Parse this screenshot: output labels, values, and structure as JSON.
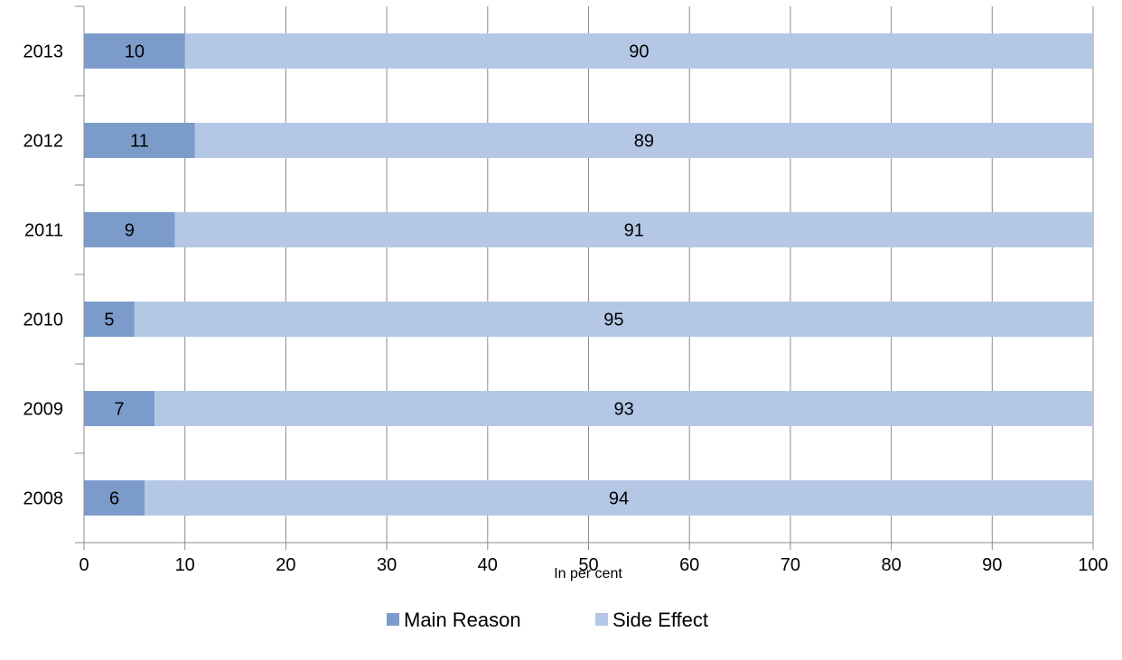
{
  "chart_data": {
    "type": "bar",
    "orientation": "horizontal",
    "stacked": true,
    "title": "",
    "categories": [
      "2013",
      "2012",
      "2011",
      "2010",
      "2009",
      "2008"
    ],
    "series": [
      {
        "name": "Main Reason",
        "color": "#7b9ccb",
        "values": [
          10,
          11,
          9,
          5,
          7,
          6
        ]
      },
      {
        "name": "Side Effect",
        "color": "#b4c8e6",
        "values": [
          90,
          89,
          91,
          95,
          93,
          94
        ]
      }
    ],
    "xlabel": "In per cent",
    "ylabel": "",
    "xlim": [
      0,
      100
    ],
    "xticks": [
      "0",
      "10",
      "20",
      "30",
      "40",
      "50",
      "60",
      "70",
      "80",
      "90",
      "100"
    ],
    "grid": true,
    "legend": "bottom"
  }
}
